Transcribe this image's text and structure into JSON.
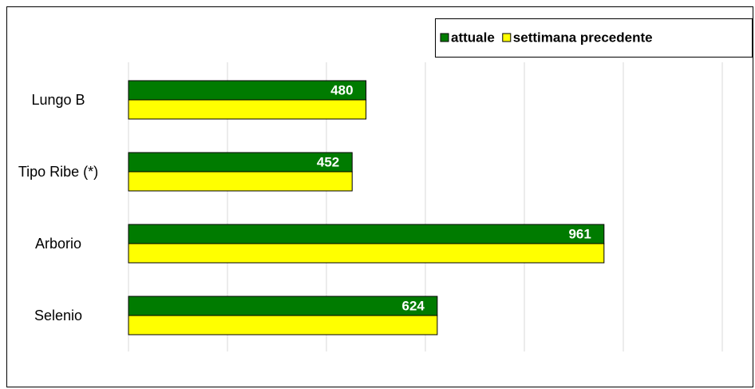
{
  "chart_data": {
    "type": "hbar",
    "categories": [
      "Lungo B",
      "Tipo Ribe (*)",
      "Arborio",
      "Selenio"
    ],
    "series": [
      {
        "name": "attuale",
        "color": "#007b00",
        "values": [
          480,
          452,
          961,
          624
        ]
      },
      {
        "name": "settimana precedente",
        "color": "#ffff00",
        "values": [
          480,
          452,
          961,
          624
        ]
      }
    ],
    "xlim": [
      0,
      1200
    ],
    "xticks": [
      0,
      200,
      400,
      600,
      800,
      1000,
      1200
    ],
    "grid": true,
    "legend": "top-right"
  }
}
